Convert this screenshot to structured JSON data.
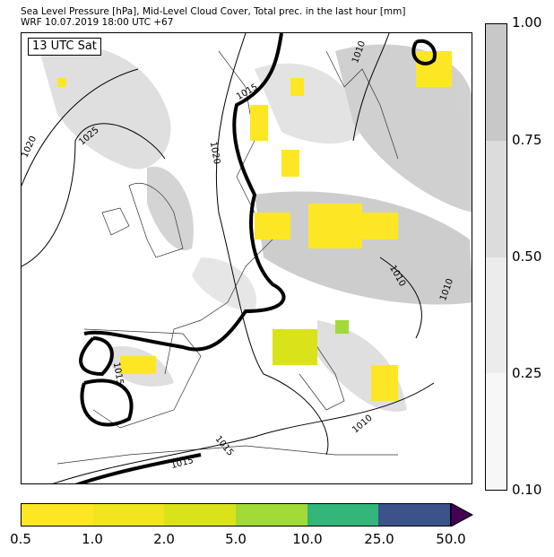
{
  "title_line1": "Sea Level Pressure [hPa], Mid-Level Cloud Cover, Total prec. in the last hour [mm]",
  "title_line2": "WRF 10.07.2019 18:00 UTC +67",
  "time_label": "13 UTC Sat",
  "isobar_labels": [
    "1010",
    "1015",
    "1020",
    "1025",
    "1020",
    "1010",
    "1010",
    "1015",
    "1010",
    "1015",
    "1015"
  ],
  "cloud_colorbar": {
    "ticks": [
      "1.00",
      "0.75",
      "0.50",
      "0.25",
      "0.10"
    ],
    "colors": [
      "#c8c8c8",
      "#dcdcdc",
      "#ececec",
      "#f7f7f7"
    ]
  },
  "precip_colorbar": {
    "ticks": [
      "0.5",
      "1.0",
      "2.0",
      "5.0",
      "10.0",
      "25.0",
      "50.0"
    ],
    "colors": [
      "#fde725",
      "#f0e51e",
      "#dae319",
      "#a2da37",
      "#32b67a",
      "#3b528b"
    ],
    "extend_color": "#440154"
  }
}
